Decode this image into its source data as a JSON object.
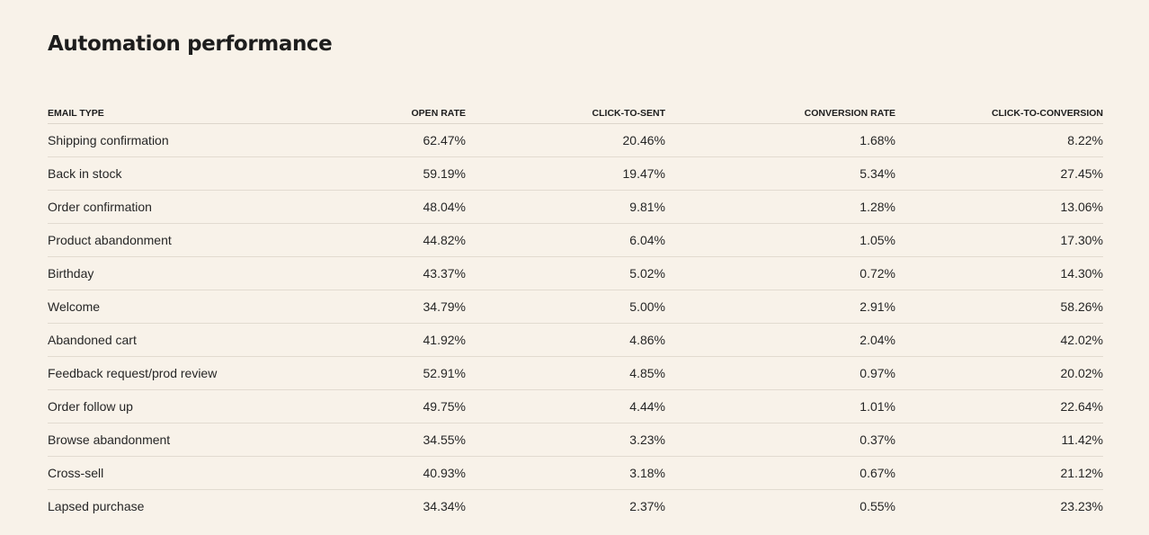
{
  "page": {
    "title": "Automation performance"
  },
  "table": {
    "headers": {
      "email_type": "EMAIL TYPE",
      "open_rate": "OPEN RATE",
      "click_to_sent": "CLICK-TO-SENT",
      "conversion_rate": "CONVERSION RATE",
      "click_to_conversion": "CLICK-TO-CONVERSION"
    },
    "rows": [
      {
        "email_type": "Shipping confirmation",
        "open_rate": "62.47%",
        "click_to_sent": "20.46%",
        "conversion_rate": "1.68%",
        "click_to_conversion": "8.22%"
      },
      {
        "email_type": "Back in stock",
        "open_rate": "59.19%",
        "click_to_sent": "19.47%",
        "conversion_rate": "5.34%",
        "click_to_conversion": "27.45%"
      },
      {
        "email_type": "Order confirmation",
        "open_rate": "48.04%",
        "click_to_sent": "9.81%",
        "conversion_rate": "1.28%",
        "click_to_conversion": "13.06%"
      },
      {
        "email_type": "Product abandonment",
        "open_rate": "44.82%",
        "click_to_sent": "6.04%",
        "conversion_rate": "1.05%",
        "click_to_conversion": "17.30%"
      },
      {
        "email_type": "Birthday",
        "open_rate": "43.37%",
        "click_to_sent": "5.02%",
        "conversion_rate": "0.72%",
        "click_to_conversion": "14.30%"
      },
      {
        "email_type": "Welcome",
        "open_rate": "34.79%",
        "click_to_sent": "5.00%",
        "conversion_rate": "2.91%",
        "click_to_conversion": "58.26%"
      },
      {
        "email_type": "Abandoned cart",
        "open_rate": "41.92%",
        "click_to_sent": "4.86%",
        "conversion_rate": "2.04%",
        "click_to_conversion": "42.02%"
      },
      {
        "email_type": "Feedback request/prod review",
        "open_rate": "52.91%",
        "click_to_sent": "4.85%",
        "conversion_rate": "0.97%",
        "click_to_conversion": "20.02%"
      },
      {
        "email_type": "Order follow up",
        "open_rate": "49.75%",
        "click_to_sent": "4.44%",
        "conversion_rate": "1.01%",
        "click_to_conversion": "22.64%"
      },
      {
        "email_type": "Browse abandonment",
        "open_rate": "34.55%",
        "click_to_sent": "3.23%",
        "conversion_rate": "0.37%",
        "click_to_conversion": "11.42%"
      },
      {
        "email_type": "Cross-sell",
        "open_rate": "40.93%",
        "click_to_sent": "3.18%",
        "conversion_rate": "0.67%",
        "click_to_conversion": "21.12%"
      },
      {
        "email_type": "Lapsed purchase",
        "open_rate": "34.34%",
        "click_to_sent": "2.37%",
        "conversion_rate": "0.55%",
        "click_to_conversion": "23.23%"
      }
    ]
  }
}
